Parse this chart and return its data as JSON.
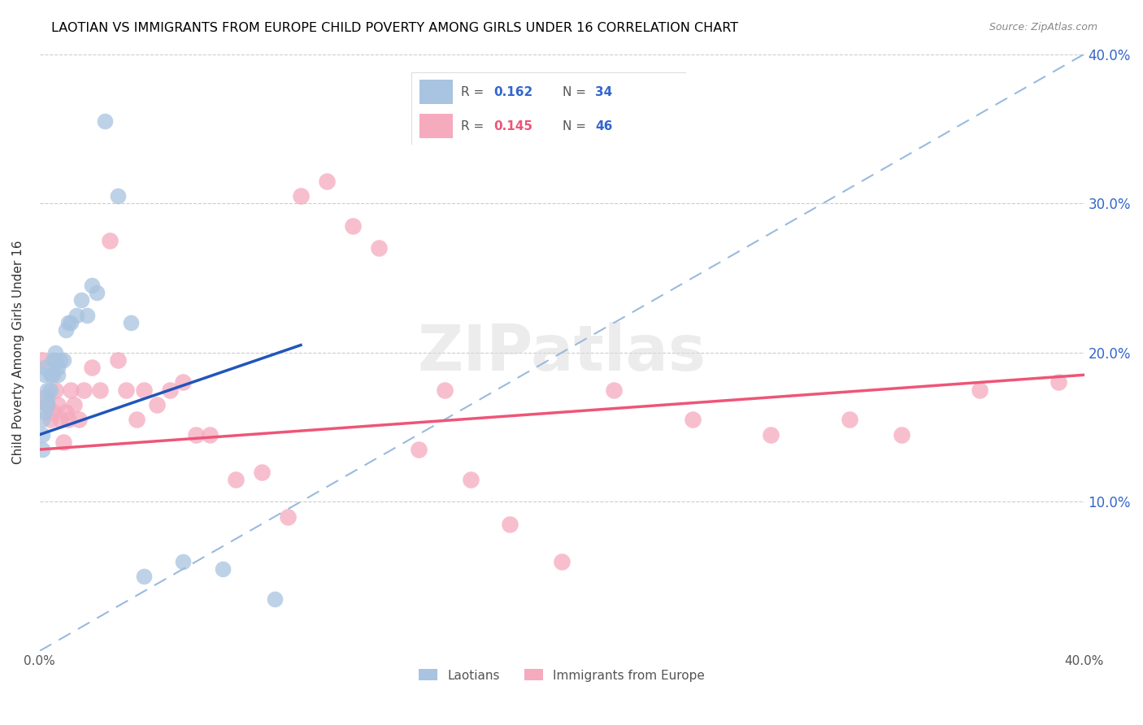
{
  "title": "LAOTIAN VS IMMIGRANTS FROM EUROPE CHILD POVERTY AMONG GIRLS UNDER 16 CORRELATION CHART",
  "source": "Source: ZipAtlas.com",
  "ylabel": "Child Poverty Among Girls Under 16",
  "yticks": [
    0.0,
    0.1,
    0.2,
    0.3,
    0.4
  ],
  "ytick_labels": [
    "",
    "10.0%",
    "20.0%",
    "30.0%",
    "40.0%"
  ],
  "xlim": [
    0.0,
    0.4
  ],
  "ylim": [
    0.0,
    0.4
  ],
  "watermark": "ZIPatlas",
  "blue_color": "#A8C4E0",
  "pink_color": "#F5AABE",
  "blue_line_color": "#2255BB",
  "pink_line_color": "#EE5577",
  "dashed_line_color": "#99BBDD",
  "blue_line_x": [
    0.0,
    0.1
  ],
  "blue_line_y": [
    0.145,
    0.205
  ],
  "pink_line_x": [
    0.0,
    0.4
  ],
  "pink_line_y": [
    0.135,
    0.185
  ],
  "laotians_x": [
    0.001,
    0.001,
    0.001,
    0.002,
    0.002,
    0.002,
    0.003,
    0.003,
    0.003,
    0.004,
    0.004,
    0.005,
    0.005,
    0.006,
    0.006,
    0.007,
    0.007,
    0.008,
    0.009,
    0.01,
    0.011,
    0.012,
    0.014,
    0.016,
    0.018,
    0.02,
    0.022,
    0.025,
    0.03,
    0.035,
    0.04,
    0.055,
    0.07,
    0.09
  ],
  "laotians_y": [
    0.155,
    0.145,
    0.135,
    0.19,
    0.185,
    0.16,
    0.175,
    0.17,
    0.165,
    0.185,
    0.175,
    0.195,
    0.185,
    0.2,
    0.195,
    0.19,
    0.185,
    0.195,
    0.195,
    0.215,
    0.22,
    0.22,
    0.225,
    0.235,
    0.225,
    0.245,
    0.24,
    0.355,
    0.305,
    0.22,
    0.05,
    0.06,
    0.055,
    0.035
  ],
  "europe_x": [
    0.001,
    0.002,
    0.003,
    0.004,
    0.005,
    0.006,
    0.007,
    0.008,
    0.009,
    0.01,
    0.011,
    0.012,
    0.013,
    0.015,
    0.017,
    0.02,
    0.023,
    0.027,
    0.03,
    0.033,
    0.037,
    0.04,
    0.045,
    0.05,
    0.055,
    0.06,
    0.065,
    0.075,
    0.085,
    0.095,
    0.1,
    0.11,
    0.12,
    0.13,
    0.145,
    0.155,
    0.165,
    0.18,
    0.2,
    0.22,
    0.25,
    0.28,
    0.31,
    0.33,
    0.36,
    0.39
  ],
  "europe_y": [
    0.195,
    0.17,
    0.165,
    0.155,
    0.16,
    0.175,
    0.165,
    0.155,
    0.14,
    0.16,
    0.155,
    0.175,
    0.165,
    0.155,
    0.175,
    0.19,
    0.175,
    0.275,
    0.195,
    0.175,
    0.155,
    0.175,
    0.165,
    0.175,
    0.18,
    0.145,
    0.145,
    0.115,
    0.12,
    0.09,
    0.305,
    0.315,
    0.285,
    0.27,
    0.135,
    0.175,
    0.115,
    0.085,
    0.06,
    0.175,
    0.155,
    0.145,
    0.155,
    0.145,
    0.175,
    0.18
  ]
}
